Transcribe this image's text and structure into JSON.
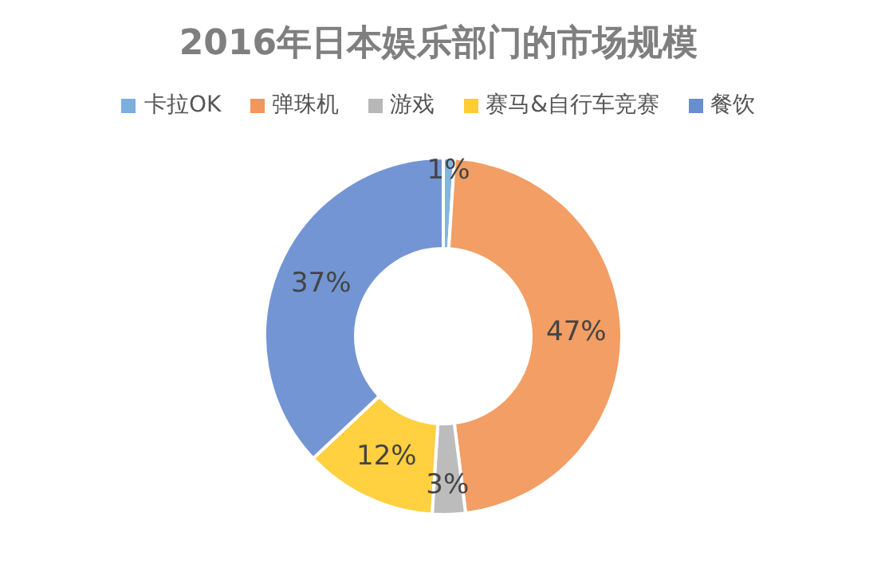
{
  "chart_data": {
    "type": "donut",
    "title": "2016年日本娱乐部门的市场规模",
    "categories": [
      "卡拉OK",
      "弹珠机",
      "游戏",
      "赛马&自行车竞赛",
      "餐饮"
    ],
    "values": [
      1,
      47,
      3,
      12,
      37
    ],
    "colors": [
      "#5b9bd5",
      "#ed7d31",
      "#a5a5a5",
      "#ffc000",
      "#4472c4"
    ],
    "value_labels": [
      "1%",
      "47%",
      "3%",
      "12%",
      "37%"
    ],
    "legend": "top"
  }
}
